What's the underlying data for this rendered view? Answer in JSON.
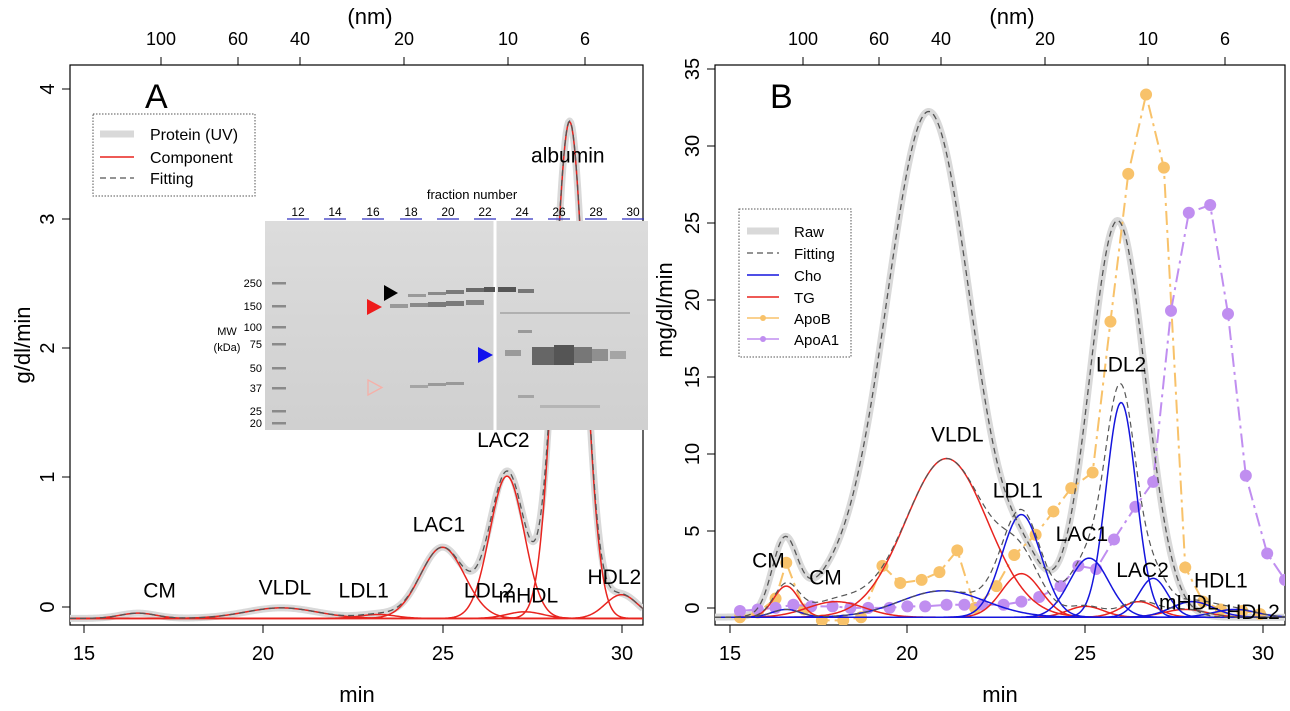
{
  "chart_data": [
    {
      "panel_label": "A",
      "type": "line",
      "xlabel": "min",
      "ylabel": "g/dl/min",
      "top_axis_label": "(nm)",
      "xlim": [
        14.6,
        30.6
      ],
      "ylim": [
        -0.05,
        4.2
      ],
      "x_ticks": [
        "15",
        "20",
        "25",
        "30"
      ],
      "y_ticks": [
        "0",
        "1",
        "2",
        "3",
        "4"
      ],
      "top_ticks": [
        "100",
        "60",
        "40",
        "20",
        "10",
        "6"
      ],
      "legend": {
        "position": "top-left",
        "entries": [
          {
            "label": "Protein (UV)",
            "color": "#d9d9d9",
            "style": "thick"
          },
          {
            "label": "Component",
            "color": "#e8241f",
            "style": "solid"
          },
          {
            "label": "Fitting",
            "color": "#555555",
            "style": "dashed"
          }
        ]
      },
      "colors": {
        "raw": "#d9d9d9",
        "component": "#e8241f",
        "fitting": "#555555"
      },
      "components": [
        {
          "center": 16.5,
          "height": 0.04,
          "sigma": 0.5
        },
        {
          "center": 20.5,
          "height": 0.08,
          "sigma": 1.0
        },
        {
          "center": 23.2,
          "height": 0.03,
          "sigma": 0.5
        },
        {
          "center": 25.0,
          "height": 0.54,
          "sigma": 0.62
        },
        {
          "center": 26.8,
          "height": 1.08,
          "sigma": 0.48
        },
        {
          "center": 27.3,
          "height": 0.05,
          "sigma": 0.5
        },
        {
          "center": 28.55,
          "height": 3.77,
          "sigma": 0.42
        },
        {
          "center": 30.0,
          "height": 0.18,
          "sigma": 0.45
        }
      ],
      "annotations": [
        {
          "text": "CM",
          "x": 17.1,
          "y": 0.16
        },
        {
          "text": "VLDL",
          "x": 20.6,
          "y": 0.18
        },
        {
          "text": "LDL1",
          "x": 22.8,
          "y": 0.16
        },
        {
          "text": "LAC1",
          "x": 24.9,
          "y": 0.66
        },
        {
          "text": "LDL2",
          "x": 26.3,
          "y": 0.16
        },
        {
          "text": "mHDL",
          "x": 27.4,
          "y": 0.12
        },
        {
          "text": "LAC2",
          "x": 26.7,
          "y": 1.3
        },
        {
          "text": "albumin",
          "x": 28.5,
          "y": 3.46
        },
        {
          "text": "HDL2",
          "x": 29.8,
          "y": 0.26
        }
      ]
    },
    {
      "panel_label": "B",
      "type": "line",
      "xlabel": "min",
      "ylabel": "mg/dl/min",
      "top_axis_label": "(nm)",
      "xlim": [
        14.6,
        30.6
      ],
      "ylim": [
        -0.5,
        35.5
      ],
      "x_ticks": [
        "15",
        "20",
        "25",
        "30"
      ],
      "y_ticks": [
        "0",
        "5",
        "10",
        "15",
        "20",
        "25",
        "30",
        "35"
      ],
      "top_ticks": [
        "100",
        "60",
        "40",
        "20",
        "10",
        "6"
      ],
      "legend": {
        "position": "top-left",
        "entries": [
          {
            "label": "Raw",
            "color": "#d9d9d9",
            "style": "thick"
          },
          {
            "label": "Fitting",
            "color": "#555555",
            "style": "dashed"
          },
          {
            "label": "Cho",
            "color": "#1515dd",
            "style": "solid"
          },
          {
            "label": "TG",
            "color": "#e8241f",
            "style": "solid"
          },
          {
            "label": "ApoB",
            "color": "#f8c26a",
            "style": "dash-dot-point"
          },
          {
            "label": "ApoA1",
            "color": "#c08ef0",
            "style": "dash-dot-point"
          }
        ]
      },
      "colors": {
        "raw": "#d9d9d9",
        "fitting": "#555555",
        "cho": "#1515dd",
        "tg": "#e8241f",
        "apob": "#f8c26a",
        "apoa1": "#c08ef0"
      },
      "tg_components": [
        {
          "center": 16.6,
          "height": 2.0,
          "sigma": 0.35
        },
        {
          "center": 18.0,
          "height": 1.0,
          "sigma": 0.8
        },
        {
          "center": 21.1,
          "height": 10.2,
          "sigma": 1.15
        },
        {
          "center": 23.2,
          "height": 2.8,
          "sigma": 0.55
        },
        {
          "center": 25.0,
          "height": 0.7,
          "sigma": 0.5
        },
        {
          "center": 26.5,
          "height": 1.0,
          "sigma": 0.5
        },
        {
          "center": 27.8,
          "height": 0.5,
          "sigma": 0.6
        }
      ],
      "cho_components": [
        {
          "center": 16.6,
          "height": 0.5,
          "sigma": 0.4
        },
        {
          "center": 21.0,
          "height": 1.7,
          "sigma": 1.2
        },
        {
          "center": 23.2,
          "height": 6.6,
          "sigma": 0.55
        },
        {
          "center": 25.1,
          "height": 3.8,
          "sigma": 0.55
        },
        {
          "center": 26.0,
          "height": 13.8,
          "sigma": 0.42
        },
        {
          "center": 26.9,
          "height": 2.5,
          "sigma": 0.4
        },
        {
          "center": 28.0,
          "height": 1.0,
          "sigma": 0.6
        },
        {
          "center": 29.2,
          "height": 0.5,
          "sigma": 0.6
        }
      ],
      "raw_total_peaks": [
        {
          "center": 16.55,
          "height": 4.5,
          "sigma": 0.35
        },
        {
          "center": 17.8,
          "height": 1.5,
          "sigma": 0.9
        },
        {
          "center": 20.6,
          "height": 32.5,
          "sigma": 1.2
        },
        {
          "center": 23.3,
          "height": 2.5,
          "sigma": 0.55
        },
        {
          "center": 25.9,
          "height": 25.5,
          "sigma": 0.78
        }
      ],
      "apob_points": [
        {
          "x": 15.3,
          "y": 0.0
        },
        {
          "x": 15.8,
          "y": 0.3
        },
        {
          "x": 16.3,
          "y": 1.2
        },
        {
          "x": 16.6,
          "y": 3.5
        },
        {
          "x": 17.1,
          "y": 0.5
        },
        {
          "x": 17.6,
          "y": -0.2
        },
        {
          "x": 18.2,
          "y": -0.2
        },
        {
          "x": 18.7,
          "y": 0.0
        },
        {
          "x": 19.3,
          "y": 3.3
        },
        {
          "x": 19.8,
          "y": 2.2
        },
        {
          "x": 20.4,
          "y": 2.4
        },
        {
          "x": 20.9,
          "y": 2.9
        },
        {
          "x": 21.4,
          "y": 4.3
        },
        {
          "x": 21.9,
          "y": 0.6
        },
        {
          "x": 22.5,
          "y": 2.0
        },
        {
          "x": 23.0,
          "y": 4.0
        },
        {
          "x": 23.6,
          "y": 5.3
        },
        {
          "x": 24.1,
          "y": 6.8
        },
        {
          "x": 24.6,
          "y": 8.3
        },
        {
          "x": 25.2,
          "y": 9.3
        },
        {
          "x": 25.7,
          "y": 19.0
        },
        {
          "x": 26.2,
          "y": 28.5
        },
        {
          "x": 26.7,
          "y": 33.6
        },
        {
          "x": 27.2,
          "y": 28.9
        },
        {
          "x": 27.8,
          "y": 3.2
        },
        {
          "x": 28.3,
          "y": 1.0
        },
        {
          "x": 28.8,
          "y": 0.5
        },
        {
          "x": 29.4,
          "y": 0.4
        },
        {
          "x": 29.9,
          "y": 0.2
        }
      ],
      "apoa1_points": [
        {
          "x": 15.3,
          "y": 0.4
        },
        {
          "x": 15.8,
          "y": 0.5
        },
        {
          "x": 16.3,
          "y": 0.6
        },
        {
          "x": 16.8,
          "y": 0.8
        },
        {
          "x": 17.3,
          "y": 0.7
        },
        {
          "x": 17.9,
          "y": 0.7
        },
        {
          "x": 18.4,
          "y": 0.6
        },
        {
          "x": 18.9,
          "y": 0.6
        },
        {
          "x": 19.5,
          "y": 0.6
        },
        {
          "x": 20.0,
          "y": 0.7
        },
        {
          "x": 20.5,
          "y": 0.7
        },
        {
          "x": 21.1,
          "y": 0.8
        },
        {
          "x": 21.6,
          "y": 0.8
        },
        {
          "x": 22.1,
          "y": 0.8
        },
        {
          "x": 22.7,
          "y": 0.8
        },
        {
          "x": 23.2,
          "y": 1.0
        },
        {
          "x": 23.7,
          "y": 1.3
        },
        {
          "x": 24.3,
          "y": 2.0
        },
        {
          "x": 24.8,
          "y": 3.3
        },
        {
          "x": 25.3,
          "y": 3.1
        },
        {
          "x": 25.8,
          "y": 5.0
        },
        {
          "x": 26.4,
          "y": 7.1
        },
        {
          "x": 26.9,
          "y": 8.7
        },
        {
          "x": 27.4,
          "y": 19.7
        },
        {
          "x": 27.9,
          "y": 26.0
        },
        {
          "x": 28.5,
          "y": 26.5
        },
        {
          "x": 29.0,
          "y": 19.5
        },
        {
          "x": 29.5,
          "y": 9.1
        },
        {
          "x": 30.1,
          "y": 4.1
        },
        {
          "x": 30.6,
          "y": 2.4
        }
      ],
      "annotations": [
        {
          "text": "CM",
          "x": 16.1,
          "y": 3.2
        },
        {
          "text": "CM",
          "x": 17.7,
          "y": 2.1
        },
        {
          "text": "VLDL",
          "x": 21.4,
          "y": 11.3
        },
        {
          "text": "LDL1",
          "x": 23.1,
          "y": 7.7
        },
        {
          "text": "LDL2",
          "x": 26.0,
          "y": 15.8
        },
        {
          "text": "LAC1",
          "x": 24.9,
          "y": 4.9
        },
        {
          "text": "LAC2",
          "x": 26.6,
          "y": 2.6
        },
        {
          "text": "mHDL",
          "x": 27.9,
          "y": 0.5
        },
        {
          "text": "HDL1",
          "x": 28.8,
          "y": 1.9
        },
        {
          "text": "HDL2",
          "x": 29.7,
          "y": -0.1
        }
      ]
    }
  ],
  "inset": {
    "title": "fraction number",
    "fractions": [
      "12",
      "14",
      "16",
      "18",
      "20",
      "22",
      "24",
      "26",
      "28",
      "30"
    ],
    "mw_title": "MW",
    "mw_unit": "(kDa)",
    "mw_markers": [
      "250",
      "150",
      "100",
      "75",
      "50",
      "37",
      "25",
      "20"
    ],
    "arrow_colors": {
      "black": "#000000",
      "red": "#ee1c1c",
      "blue": "#1010ee",
      "pale": "#f5b0a8"
    }
  }
}
